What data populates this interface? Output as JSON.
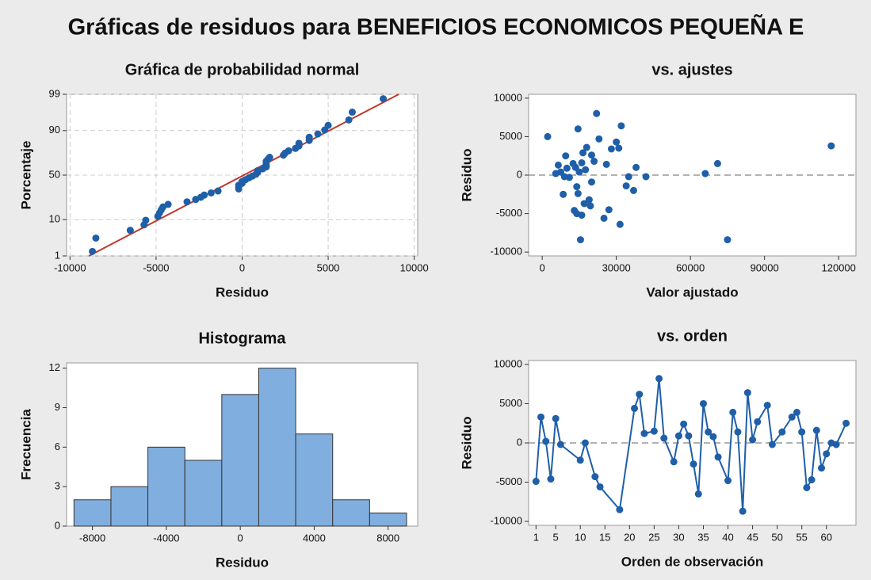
{
  "title": "Gráficas de residuos para BENEFICIOS ECONOMICOS PEQUEÑA E",
  "chart_data": [
    {
      "type": "probability",
      "title": "Gráfica de probabilidad normal",
      "xlabel": "Residuo",
      "ylabel": "Porcentaje",
      "x": [
        -8700,
        -8500,
        -6500,
        -5700,
        -5600,
        -4900,
        -4800,
        -4700,
        -4600,
        -4300,
        -3200,
        -2700,
        -2400,
        -2200,
        -1800,
        -1400,
        -200,
        -200,
        -200,
        0,
        0,
        200,
        400,
        600,
        800,
        900,
        900,
        1200,
        1400,
        1400,
        1400,
        1400,
        1500,
        1600,
        2400,
        2500,
        2700,
        3100,
        3300,
        3300,
        3900,
        3900,
        4400,
        4800,
        5000,
        6200,
        6400,
        8200
      ],
      "values": [
        1.4,
        3.5,
        5.6,
        7.6,
        9.7,
        11.8,
        13.8,
        15.9,
        18.0,
        20.0,
        22.1,
        24.2,
        26.2,
        28.3,
        30.4,
        32.4,
        34.5,
        36.5,
        38.6,
        40.7,
        42.7,
        44.8,
        46.9,
        48.9,
        51.0,
        53.1,
        55.1,
        57.2,
        59.3,
        61.3,
        63.4,
        65.5,
        67.5,
        69.6,
        71.7,
        73.7,
        75.8,
        77.9,
        79.9,
        82.0,
        84.1,
        86.2,
        88.2,
        90.3,
        92.4,
        94.4,
        96.5,
        98.6
      ],
      "color": "#1f5fa8",
      "fit_line": {
        "x": [
          -8900,
          9100
        ],
        "y": [
          1,
          99
        ],
        "color": "#c0392b"
      },
      "xlim": [
        -10200,
        10200
      ],
      "xticks": [
        -10000,
        -5000,
        0,
        5000,
        10000
      ],
      "ylim": [
        1,
        99
      ],
      "yticks": [
        1,
        10,
        50,
        90,
        99
      ],
      "yscale": "probability",
      "grid": true
    },
    {
      "type": "scatter",
      "title": "vs. ajustes",
      "xlabel": "Valor ajustado",
      "ylabel": "Residuo",
      "x": [
        2200,
        5500,
        6500,
        7500,
        8500,
        9500,
        10000,
        11000,
        12500,
        13000,
        13500,
        14000,
        14500,
        14500,
        15000,
        15500,
        16000,
        16000,
        16500,
        17000,
        17500,
        18000,
        19000,
        19500,
        20000,
        21000,
        22000,
        23000,
        25000,
        26000,
        27000,
        28000,
        30000,
        31000,
        31500,
        32000,
        34000,
        35000,
        37000,
        38000,
        42000,
        66000,
        71000,
        75000,
        117000,
        9000,
        14000,
        20000
      ],
      "values": [
        5000,
        200,
        1300,
        400,
        -2500,
        2500,
        900,
        -300,
        1500,
        -4600,
        1000,
        -5000,
        -2400,
        6000,
        400,
        -8400,
        1600,
        -5200,
        2900,
        -3700,
        700,
        3600,
        -3200,
        -4000,
        2600,
        1800,
        8000,
        4700,
        -5600,
        1400,
        -4500,
        3400,
        4300,
        3500,
        -6400,
        6400,
        -1400,
        -200,
        -2000,
        1000,
        -200,
        200,
        1500,
        -8400,
        3800,
        -200,
        -1500,
        -900
      ],
      "color": "#1f5fa8",
      "hline": 0,
      "xlim": [
        -5500,
        127000
      ],
      "xticks": [
        0,
        30000,
        60000,
        90000,
        120000
      ],
      "ylim": [
        -10500,
        10500
      ],
      "yticks": [
        -10000,
        -5000,
        0,
        5000,
        10000
      ]
    },
    {
      "type": "histogram",
      "title": "Histograma",
      "xlabel": "Residuo",
      "ylabel": "Frecuencia",
      "bins": [
        -9000,
        -7000,
        -5000,
        -3000,
        -1000,
        1000,
        3000,
        5000,
        7000,
        9000
      ],
      "values": [
        2,
        3,
        6,
        5,
        10,
        12,
        7,
        2,
        1
      ],
      "color": "#80aedf",
      "xlim": [
        -9400,
        9600
      ],
      "xticks": [
        -8000,
        -4000,
        0,
        4000,
        8000
      ],
      "ylim": [
        0,
        12.4
      ],
      "yticks": [
        0,
        3,
        6,
        9,
        12
      ]
    },
    {
      "type": "line",
      "title": "vs. orden",
      "xlabel": "Orden de observación",
      "ylabel": "Residuo",
      "x": [
        1,
        2,
        3,
        4,
        5,
        6,
        10,
        11,
        13,
        14,
        18,
        21,
        22,
        23,
        25,
        26,
        27,
        29,
        30,
        31,
        32,
        33,
        34,
        35,
        36,
        37,
        38,
        40,
        41,
        42,
        43,
        44,
        45,
        46,
        48,
        49,
        51,
        53,
        54,
        55,
        56,
        57,
        58,
        59,
        60,
        61,
        62,
        64
      ],
      "values": [
        -4900,
        3300,
        200,
        -4600,
        3100,
        -200,
        -2200,
        0,
        -4300,
        -5600,
        -8500,
        4400,
        6200,
        1200,
        1500,
        8200,
        600,
        -2400,
        900,
        2400,
        900,
        -2700,
        -6500,
        5000,
        1400,
        800,
        -1800,
        -4800,
        3900,
        1400,
        -8700,
        6400,
        400,
        2700,
        4800,
        -200,
        1400,
        3300,
        3900,
        1400,
        -5700,
        -4700,
        1600,
        -3200,
        -1400,
        0,
        -200,
        2500
      ],
      "color": "#1f5fa8",
      "hline": 0,
      "xlim": [
        -0.5,
        66
      ],
      "xticks": [
        1,
        5,
        10,
        15,
        20,
        25,
        30,
        35,
        40,
        45,
        50,
        55,
        60
      ],
      "ylim": [
        -10500,
        10500
      ],
      "yticks": [
        -10000,
        -5000,
        0,
        5000,
        10000
      ]
    }
  ]
}
